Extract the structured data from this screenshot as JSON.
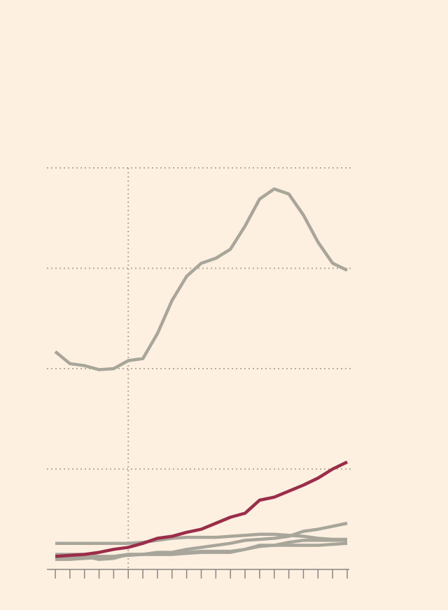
{
  "chart_data": {
    "type": "line",
    "x": [
      0,
      1,
      2,
      3,
      4,
      5,
      6,
      7,
      8,
      9,
      10,
      11,
      12,
      13,
      14,
      15,
      16,
      17,
      18,
      19,
      20
    ],
    "xlim": [
      0,
      20
    ],
    "xticks": [
      0,
      1,
      2,
      3,
      4,
      5,
      6,
      7,
      8,
      9,
      10,
      11,
      12,
      13,
      14,
      15,
      16,
      17,
      18,
      19,
      20
    ],
    "ylim": [
      0,
      4
    ],
    "yticks": [
      1,
      2,
      3,
      4
    ],
    "grid": true,
    "vline": 5,
    "series": [
      {
        "color": "#a8a59a",
        "values": [
          2.17,
          2.05,
          2.03,
          1.99,
          2.0,
          2.08,
          2.1,
          2.35,
          2.68,
          2.92,
          3.05,
          3.1,
          3.19,
          3.42,
          3.69,
          3.79,
          3.74,
          3.53,
          3.26,
          3.05,
          2.98
        ]
      },
      {
        "color": "#a8a59a",
        "values": [
          0.26,
          0.26,
          0.26,
          0.26,
          0.26,
          0.26,
          0.27,
          0.29,
          0.31,
          0.32,
          0.32,
          0.32,
          0.33,
          0.34,
          0.35,
          0.35,
          0.34,
          0.33,
          0.31,
          0.3,
          0.3
        ]
      },
      {
        "color": "#a8a59a",
        "values": [
          0.1,
          0.1,
          0.11,
          0.12,
          0.13,
          0.15,
          0.15,
          0.17,
          0.17,
          0.2,
          0.22,
          0.24,
          0.26,
          0.29,
          0.3,
          0.31,
          0.33,
          0.38,
          0.4,
          0.43,
          0.46
        ]
      },
      {
        "color": "#a8a59a",
        "values": [
          0.15,
          0.15,
          0.15,
          0.13,
          0.13,
          0.14,
          0.15,
          0.15,
          0.15,
          0.16,
          0.17,
          0.17,
          0.17,
          0.2,
          0.23,
          0.24,
          0.27,
          0.29,
          0.29,
          0.29,
          0.29
        ]
      },
      {
        "color": "#a8a59a",
        "values": [
          0.1,
          0.12,
          0.13,
          0.1,
          0.11,
          0.15,
          0.15,
          0.15,
          0.15,
          0.17,
          0.18,
          0.18,
          0.18,
          0.2,
          0.24,
          0.24,
          0.24,
          0.24,
          0.24,
          0.25,
          0.26
        ]
      },
      {
        "color": "#9b2c4a",
        "values": [
          0.13,
          0.14,
          0.15,
          0.17,
          0.2,
          0.22,
          0.26,
          0.31,
          0.33,
          0.37,
          0.4,
          0.46,
          0.52,
          0.56,
          0.69,
          0.72,
          0.78,
          0.84,
          0.91,
          1.0,
          1.07
        ]
      }
    ]
  }
}
